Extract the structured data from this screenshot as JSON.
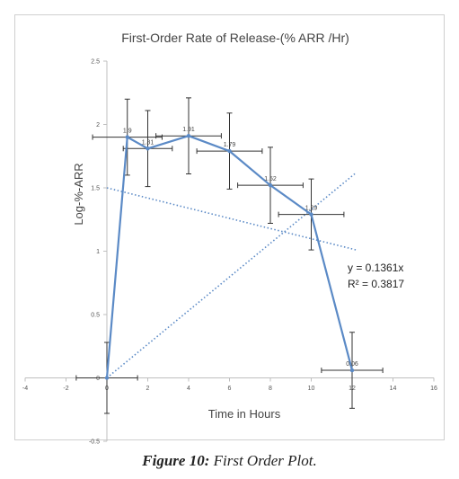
{
  "caption": {
    "label": "Figure 10:",
    "text": "First Order Plot."
  },
  "chart_data": {
    "type": "line",
    "title": "First-Order Rate of Release-(% ARR /Hr)",
    "xlabel": "Time in Hours",
    "ylabel": "Log-%-ARR",
    "xlim": [
      -4,
      16
    ],
    "ylim": [
      -0.5,
      2.5
    ],
    "x_ticks": [
      -4,
      -2,
      0,
      2,
      4,
      6,
      8,
      10,
      12,
      14,
      16
    ],
    "y_ticks": [
      -0.5,
      0,
      0.5,
      1,
      1.5,
      2,
      2.5
    ],
    "grid": false,
    "series": [
      {
        "color": "#5b8ac6",
        "x": [
          0,
          1,
          2,
          4,
          6,
          8,
          10,
          12
        ],
        "y": [
          0,
          1.9,
          1.81,
          1.91,
          1.79,
          1.52,
          1.29,
          0.06
        ],
        "data_labels": [
          "",
          "1.9",
          "1.81",
          "1.91",
          "1.79",
          "1.52",
          "1.29",
          "0.06"
        ],
        "y_error": [
          0.28,
          0.3,
          0.3,
          0.3,
          0.3,
          0.3,
          0.28,
          0.3
        ],
        "x_error": [
          1.5,
          1.7,
          1.2,
          1.6,
          1.6,
          1.6,
          1.6,
          1.5
        ]
      }
    ],
    "trendlines": [
      {
        "type": "linear",
        "color": "#5b8ac6",
        "x": [
          0,
          12.2
        ],
        "y": [
          0,
          1.62
        ]
      },
      {
        "type": "linear",
        "color": "#5b8ac6",
        "x": [
          0,
          12.2
        ],
        "y": [
          1.5,
          1.01
        ]
      }
    ],
    "annotations": [
      "y = 0.1361x",
      "R² = 0.3817"
    ]
  }
}
